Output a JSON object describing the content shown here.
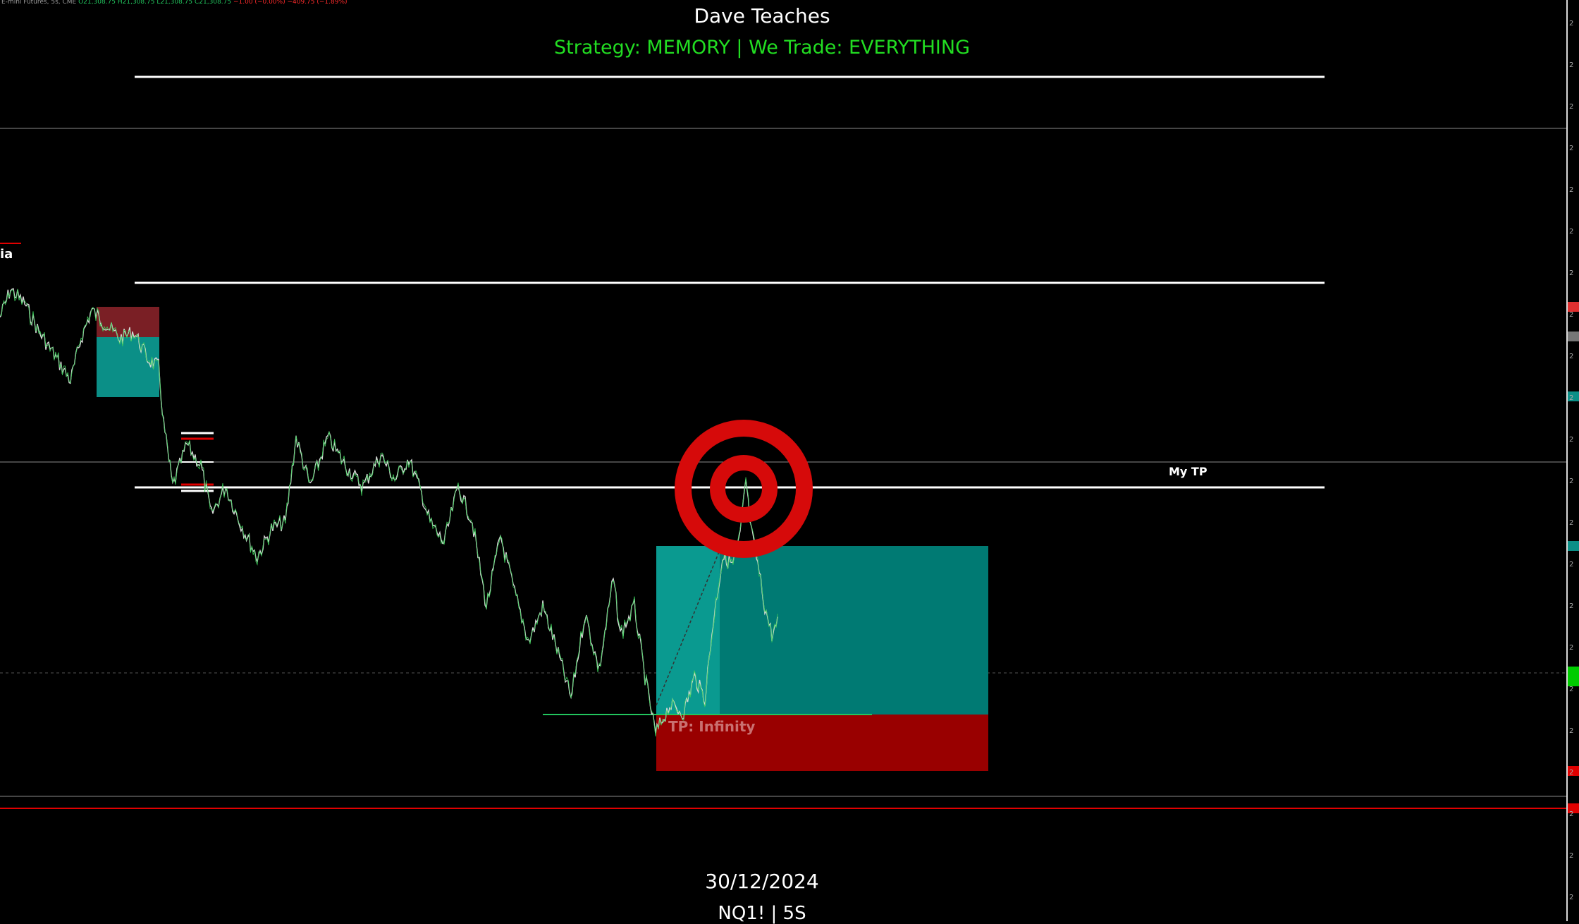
{
  "header": {
    "symbol_name": "E-mini Futures, 5s, CME",
    "open": "O21,308.75",
    "high": "H21,308.75",
    "low": "L21,308.75",
    "close": "C21,308.75",
    "change": "−1.00 (−0.00%)",
    "change2": "−409.75 (−1.89%)",
    "title": "Dave Teaches",
    "subtitle": "Strategy: MEMORY  | We Trade: EVERYTHING"
  },
  "annotations": {
    "target_label": "My TP",
    "side_label": "ia",
    "position_label": "TP: Infinity"
  },
  "footer": {
    "date": "30/12/2024",
    "symbol": "NQ1! | 5S"
  },
  "axis": {
    "tick_prefix": "2"
  },
  "colors": {
    "background": "#000000",
    "profit_zone": "#0b8f87",
    "loss_zone": "#9b0a0a",
    "target": "#d60a0a",
    "subtitle": "#22dd22"
  }
}
